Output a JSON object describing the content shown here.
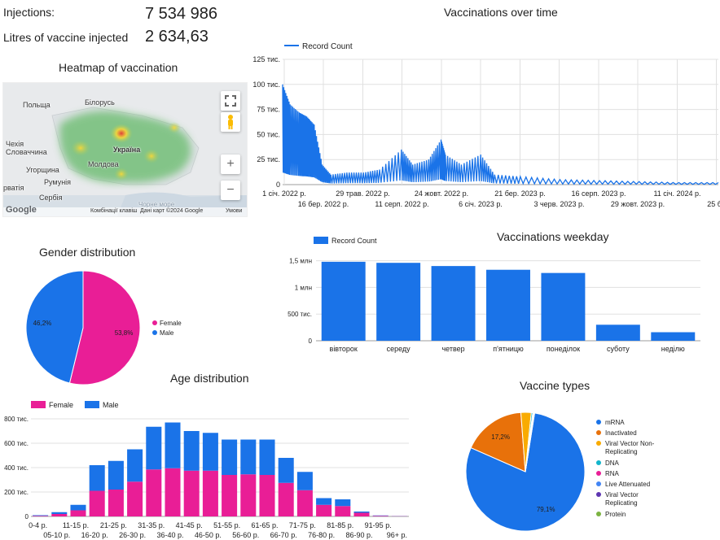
{
  "kpis": {
    "injections_label": "Injections:",
    "injections_value": "7 534 986",
    "litres_label": "Litres of vaccine injected",
    "litres_value": "2 634,63"
  },
  "heatmap": {
    "title": "Heatmap of vaccination",
    "labels": {
      "poland": "Польща",
      "belarus": "Білорусь",
      "czechia": "Чехія",
      "slovakia": "Словаччина",
      "ukraine": "Україна",
      "hungary": "Угорщина",
      "moldova": "Молдова",
      "romania": "Румунія",
      "croatia": "рватія",
      "serbia": "Сербія",
      "black_sea": "Чорне море"
    },
    "footer": {
      "logo": "Google",
      "shortcuts": "Комбінації клавіш",
      "mapdata": "Дані карт ©2024 Google",
      "terms": "Умови"
    },
    "controls": {
      "fullscreen": "fullscreen-icon",
      "pegman": "pegman-icon",
      "zoom_in": "+",
      "zoom_out": "−"
    }
  },
  "over_time": {
    "title": "Vaccinations over time",
    "legend": "Record Count",
    "y_ticks": [
      "125 тис.",
      "100 тис.",
      "75 тис.",
      "50 тис.",
      "25 тис.",
      "0"
    ],
    "x_ticks_top": [
      "1 січ. 2022 р.",
      "29 трав. 2022 р.",
      "24 жовт. 2022 р.",
      "21 бер. 2023 р.",
      "16 серп. 2023 р.",
      "11 січ. 2024 р."
    ],
    "x_ticks_bottom": [
      "16 бер. 2022 р.",
      "11 серп. 2022 р.",
      "6 січ. 2023 р.",
      "3 черв. 2023 р.",
      "29 жовт. 2023 р.",
      "25 бе"
    ]
  },
  "gender": {
    "title": "Gender distribution",
    "legend": [
      "Female",
      "Male"
    ],
    "labels": [
      "53,8%",
      "46,2%"
    ]
  },
  "weekday": {
    "title": "Vaccinations weekday",
    "legend": "Record Count",
    "y_ticks": [
      "1,5 млн",
      "1 млн",
      "500 тис.",
      "0"
    ]
  },
  "age": {
    "title": "Age distribution",
    "legend": [
      "Female",
      "Male"
    ],
    "y_ticks": [
      "800 тис.",
      "600 тис.",
      "400 тис.",
      "200 тис.",
      "0"
    ]
  },
  "vaccine": {
    "title": "Vaccine types",
    "labels": [
      "79,1%",
      "17,2%"
    ]
  },
  "colors": {
    "blue": "#1a73e8",
    "pink": "#e91e96",
    "orange": "#e8710a",
    "yellow": "#f9ab00",
    "teal": "#12b5cb",
    "green": "#7cb342"
  },
  "chart_data": [
    {
      "type": "line",
      "title": "Vaccinations over time",
      "series": [
        {
          "name": "Record Count"
        }
      ],
      "ylim": [
        0,
        125000
      ],
      "x": [
        "2022-01-01",
        "2022-01-15",
        "2022-02-01",
        "2022-02-15",
        "2022-03-01",
        "2022-03-16",
        "2022-04-01",
        "2022-05-01",
        "2022-06-01",
        "2022-07-01",
        "2022-08-11",
        "2022-09-01",
        "2022-10-01",
        "2022-10-24",
        "2022-11-01",
        "2022-12-01",
        "2023-01-06",
        "2023-02-01",
        "2023-03-21",
        "2023-06-03",
        "2023-08-16",
        "2023-10-29",
        "2024-01-11",
        "2024-03-25"
      ],
      "values": [
        100000,
        80000,
        72000,
        68000,
        60000,
        20000,
        10000,
        12000,
        12000,
        15000,
        35000,
        20000,
        25000,
        45000,
        30000,
        20000,
        30000,
        10000,
        8000,
        5000,
        4000,
        3000,
        2000,
        2000
      ]
    },
    {
      "type": "pie",
      "title": "Gender distribution",
      "categories": [
        "Female",
        "Male"
      ],
      "values": [
        53.8,
        46.2
      ]
    },
    {
      "type": "bar",
      "title": "Vaccinations weekday",
      "series": [
        {
          "name": "Record Count"
        }
      ],
      "categories": [
        "вівторок",
        "середу",
        "четвер",
        "п'ятницю",
        "понеділок",
        "суботу",
        "неділю"
      ],
      "values": [
        1480000,
        1460000,
        1400000,
        1330000,
        1270000,
        300000,
        160000
      ],
      "ylim": [
        0,
        1600000
      ]
    },
    {
      "type": "bar",
      "title": "Age distribution",
      "categories": [
        "0-4 р.",
        "05-10 р.",
        "11-15 р.",
        "16-20 р.",
        "21-25 р.",
        "26-30 р.",
        "31-35 р.",
        "36-40 р.",
        "41-45 р.",
        "46-50 р.",
        "51-55 р.",
        "56-60 р.",
        "61-65 р.",
        "66-70 р.",
        "71-75 р.",
        "76-80 р.",
        "81-85 р.",
        "86-90 р.",
        "91-95 р.",
        "96+ р."
      ],
      "series": [
        {
          "name": "Female",
          "values": [
            5000,
            20000,
            50000,
            210000,
            220000,
            285000,
            385000,
            395000,
            375000,
            375000,
            340000,
            345000,
            340000,
            275000,
            215000,
            95000,
            85000,
            30000,
            5000,
            2000
          ]
        },
        {
          "name": "Male",
          "values": [
            5000,
            15000,
            45000,
            210000,
            235000,
            265000,
            350000,
            375000,
            325000,
            310000,
            290000,
            285000,
            290000,
            205000,
            150000,
            55000,
            55000,
            10000,
            3000,
            1000
          ]
        }
      ],
      "ylim": [
        0,
        800000
      ]
    },
    {
      "type": "pie",
      "title": "Vaccine types",
      "categories": [
        "mRNA",
        "Inactivated",
        "Viral Vector Non-Replicating",
        "DNA",
        "RNA",
        "Live Attenuated",
        "Viral Vector Replicating",
        "Protein"
      ],
      "values": [
        79.1,
        17.2,
        2.8,
        0.4,
        0.2,
        0.1,
        0.1,
        0.1
      ]
    }
  ]
}
